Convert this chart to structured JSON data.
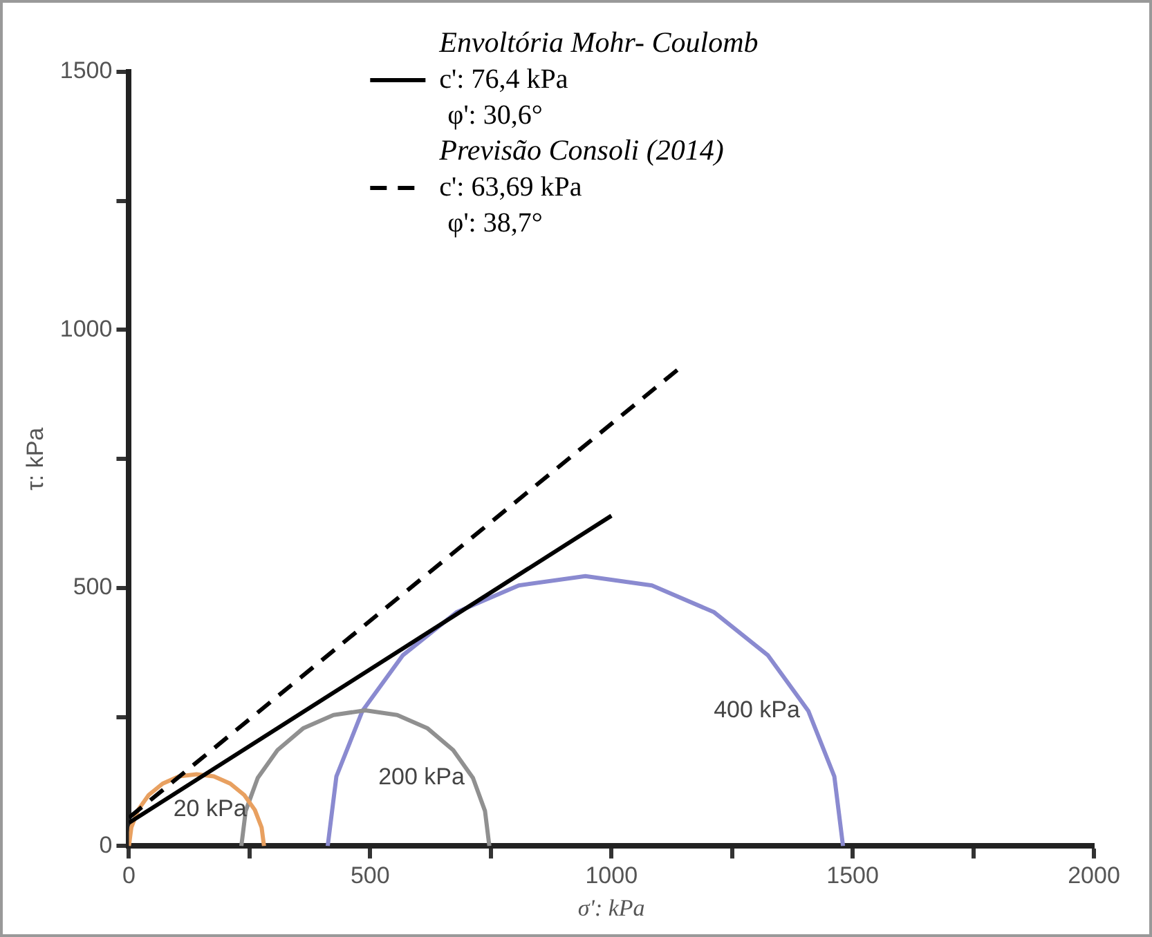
{
  "chart_data": {
    "type": "line",
    "xlabel": "σ': kPa",
    "ylabel": "τ: kPa",
    "xlim": [
      0,
      2000
    ],
    "xticks": [
      0,
      {
        "value": 250,
        "label": null
      },
      500,
      {
        "value": 750,
        "label": null
      },
      1000,
      {
        "value": 1250,
        "label": null
      },
      1500,
      {
        "value": 1750,
        "label": null
      },
      2000
    ],
    "ylim": [
      0,
      1500
    ],
    "yticks": [
      0,
      {
        "value": 250,
        "label": null
      },
      500,
      {
        "value": 750,
        "label": null
      },
      1000,
      {
        "value": 1250,
        "label": null
      },
      1500
    ],
    "grid": false,
    "marker": "none",
    "legend": "top",
    "series": [
      {
        "name": "c': 76,4 kPa",
        "color": "#000000",
        "line_style": "solid",
        "x": [
          0,
          1000
        ],
        "values": [
          45,
          640
        ]
      },
      {
        "name": "c': 63,69 kPa",
        "color": "#000000",
        "line_style": "dashed",
        "x": [
          0,
          1140
        ],
        "values": [
          55,
          925
        ]
      },
      {
        "name": "20 kPa",
        "color": "#e8a060",
        "x": [
          280,
          275,
          261,
          239,
          210,
          176,
          140,
          104,
          70,
          41,
          19,
          5,
          0
        ],
        "values": [
          0,
          36,
          70,
          99,
          121,
          135,
          139,
          135,
          121,
          99,
          70,
          36,
          0
        ]
      },
      {
        "name": "200 kPa",
        "color": "#909090",
        "x": [
          747,
          738,
          713,
          672,
          619,
          556,
          490,
          424,
          361,
          308,
          267,
          242,
          233
        ],
        "values": [
          0,
          68,
          132,
          186,
          228,
          254,
          263,
          254,
          228,
          186,
          132,
          68,
          0
        ]
      },
      {
        "name": "400 kPa",
        "color": "#8a8ad0",
        "x": [
          1480,
          1462,
          1408,
          1324,
          1213,
          1084,
          946,
          808,
          679,
          568,
          484,
          430,
          412
        ],
        "values": [
          0,
          135,
          262,
          370,
          453,
          505,
          523,
          505,
          453,
          370,
          262,
          135,
          0
        ]
      }
    ],
    "annotations": [
      "Envoltória Mohr- Coulomb",
      "φ': 30,6°",
      "Previsão Consoli (2014)",
      "φ': 38,7°"
    ]
  }
}
